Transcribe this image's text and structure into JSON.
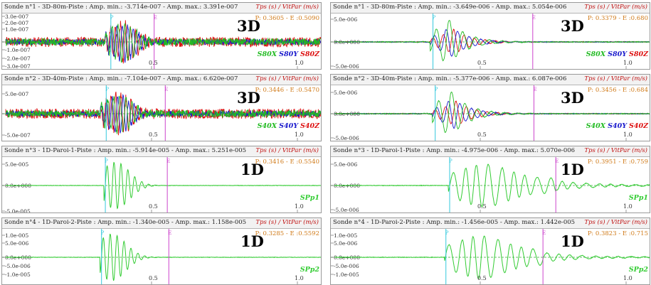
{
  "units_label": "Tps (s) / VitPar (m/s)",
  "colors": {
    "x": "#22bb22",
    "y": "#1a1acc",
    "z": "#dd1111",
    "p": "#33cc33",
    "p_marker": "#33c8dd",
    "e_marker": "#cc44cc",
    "pe_text": "#d07a18"
  },
  "panels": [
    {
      "title": "Sonde n°1 - 3D-80m-Piste :  Amp. min.: -3.714e-007 - Amp. max.: 3.391e-007",
      "pe": "P: 0.3605 - E :0.5090",
      "dim": "3D",
      "legend": [
        {
          "text": "S80X",
          "color": "#22bb22"
        },
        {
          "text": "S80Y",
          "color": "#1a1acc"
        },
        {
          "text": "S80Z",
          "color": "#dd1111"
        }
      ],
      "yticks": [
        "3.0e-007",
        "2.0e-007",
        "1.0e-007",
        "0.0e+000",
        "-1.0e-007",
        "-2.0e-007",
        "-3.0e-007"
      ],
      "xticks": [
        "0.5",
        "1.0"
      ]
    },
    {
      "title": "Sonde n°1 - 3D-80m-Piste :  Amp. min.: -3.649e-006 - Amp. max.: 5.054e-006",
      "pe": "P: 0.3379 - E :0.680",
      "dim": "3D",
      "legend": [
        {
          "text": "S80X",
          "color": "#22bb22"
        },
        {
          "text": "S80Y",
          "color": "#1a1acc"
        },
        {
          "text": "S80Z",
          "color": "#dd1111"
        }
      ],
      "yticks": [
        "5.0e-006",
        "0.0e+000",
        "-5.0e-006"
      ],
      "xticks": [
        "0.5",
        "1.0"
      ]
    },
    {
      "title": "Sonde n°2 - 3D-40m-Piste :  Amp. min.: -7.104e-007 - Amp. max.: 6.620e-007",
      "pe": "P: 0.3446 - E :0.5470",
      "dim": "3D",
      "legend": [
        {
          "text": "S40X",
          "color": "#22bb22"
        },
        {
          "text": "S40Y",
          "color": "#1a1acc"
        },
        {
          "text": "S40Z",
          "color": "#dd1111"
        }
      ],
      "yticks": [
        "5.0e-007",
        "0.0e+000",
        "-5.0e-007"
      ],
      "xticks": [
        "0.5",
        "1.0"
      ]
    },
    {
      "title": "Sonde n°2 - 3D-40m-Piste :  Amp. min.: -5.377e-006 - Amp. max.: 6.087e-006",
      "pe": "P: 0.3456 - E :0.684",
      "dim": "3D",
      "legend": [
        {
          "text": "S40X",
          "color": "#22bb22"
        },
        {
          "text": "S40Y",
          "color": "#1a1acc"
        },
        {
          "text": "S40Z",
          "color": "#dd1111"
        }
      ],
      "yticks": [
        "5.0e-006",
        "0.0e+000",
        "-5.0e-006"
      ],
      "xticks": [
        "0.5",
        "1.0"
      ]
    },
    {
      "title": "Sonde n°3 - 1D-Paroi-1-Piste :  Amp. min.: -5.914e-005 - Amp. max.: 5.251e-005",
      "pe": "P: 0.3416 - E :0.5540",
      "dim": "1D",
      "legend": [
        {
          "text": "SPp1",
          "color": "#33cc33"
        }
      ],
      "yticks": [
        "5.0e-005",
        "0.0e+000",
        "-5.0e-005"
      ],
      "xticks": [
        "0.5",
        "1.0"
      ]
    },
    {
      "title": "Sonde n°3 - 1D-Paroi-1-Piste :  Amp. min.: -4.975e-006 - Amp. max.: 5.070e-006",
      "pe": "P: 0.3951 - E :0.759",
      "dim": "1D",
      "legend": [
        {
          "text": "SPp1",
          "color": "#33cc33"
        }
      ],
      "yticks": [
        "5.0e-006",
        "0.0e+000",
        "-5.0e-006"
      ],
      "xticks": [
        "0.5",
        "1.0"
      ]
    },
    {
      "title": "Sonde n°4 - 1D-Paroi-2-Piste :  Amp. min.: -1.340e-005 - Amp. max.: 1.158e-005",
      "pe": "P: 0.3285 - E :0.5592",
      "dim": "1D",
      "legend": [
        {
          "text": "SPp2",
          "color": "#33cc33"
        }
      ],
      "yticks": [
        "1.0e-005",
        "5.0e-006",
        "0.0e+000",
        "-5.0e-006",
        "-1.0e-005"
      ],
      "xticks": [
        "0.5",
        "1.0"
      ]
    },
    {
      "title": "Sonde n°4 - 1D-Paroi-2-Piste :  Amp. min.: -1.456e-005 - Amp. max.: 1.442e-005",
      "pe": "P: 0.3823 - E :0.715",
      "dim": "1D",
      "legend": [
        {
          "text": "SPp2",
          "color": "#33cc33"
        }
      ],
      "yticks": [
        "1.0e-005",
        "5.0e-006",
        "0.0e+000",
        "-5.0e-006",
        "-1.0e-005"
      ],
      "xticks": [
        "0.5",
        "1.0"
      ]
    }
  ],
  "chart_data": {
    "type": "line",
    "panels": 8,
    "markers": [
      "P",
      "E"
    ],
    "xlabel": "Tps (s)",
    "grid": "dashed zero line"
  }
}
